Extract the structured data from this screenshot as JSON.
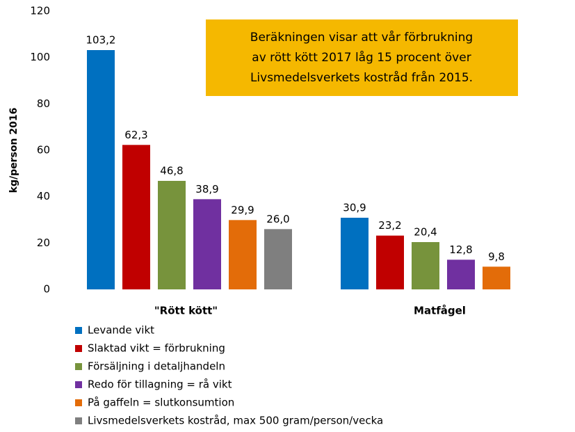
{
  "chart_data": {
    "type": "bar",
    "annotation": [
      "Beräkningen visar att vår förbrukning",
      "av rött kött 2017 låg 15 procent över",
      "Livsmedelsverkets kostråd från 2015."
    ],
    "y_label": "kg/person 2016",
    "categories": [
      "\"Rött kött\"",
      "Matfågel"
    ],
    "series": [
      {
        "name": "Levande vikt",
        "color": "#0070c0",
        "values": [
          103.2,
          30.9
        ],
        "value_labels": [
          "103,2",
          "30,9"
        ]
      },
      {
        "name": "Slaktad vikt = förbrukning",
        "color": "#c00000",
        "values": [
          62.3,
          23.2
        ],
        "value_labels": [
          "62,3",
          "23,2"
        ]
      },
      {
        "name": "Försäljning i detaljhandeln",
        "color": "#77933c",
        "values": [
          46.8,
          20.4
        ],
        "value_labels": [
          "46,8",
          "20,4"
        ]
      },
      {
        "name": "Redo för tillagning = rå vikt",
        "color": "#7030a0",
        "values": [
          38.9,
          12.8
        ],
        "value_labels": [
          "38,9",
          "12,8"
        ]
      },
      {
        "name": "På gaffeln = slutkonsumtion",
        "color": "#e36c09",
        "values": [
          29.9,
          9.8
        ],
        "value_labels": [
          "29,9",
          "9,8"
        ]
      },
      {
        "name": "Livsmedelsverkets kostråd, max 500 gram/person/vecka",
        "color": "#7f7f7f",
        "values": [
          26.0,
          null
        ],
        "value_labels": [
          "26,0",
          null
        ]
      }
    ],
    "ylim": [
      0,
      120
    ],
    "yticks": [
      0,
      20,
      40,
      60,
      80,
      100,
      120
    ],
    "legend": "bottom",
    "grid": false
  }
}
